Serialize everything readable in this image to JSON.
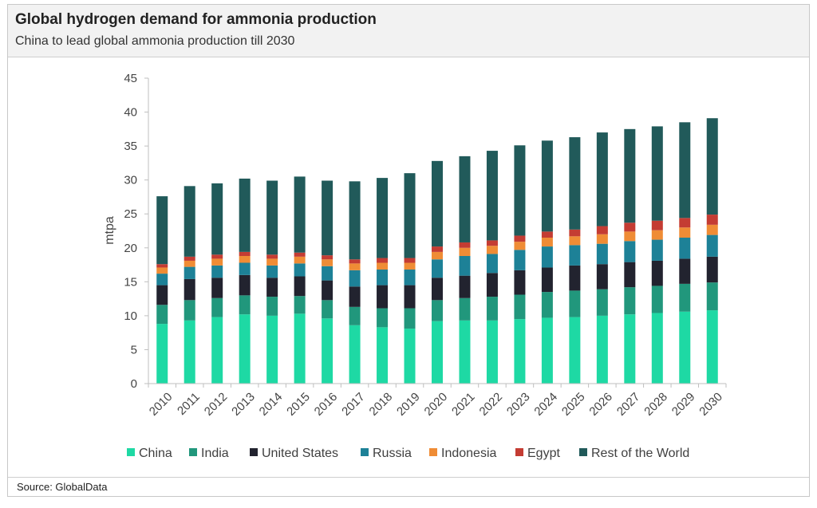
{
  "header": {
    "title": "Global hydrogen demand for ammonia production",
    "subtitle": "China to lead global ammonia production till 2030"
  },
  "footer": {
    "source": "Source: GlobalData"
  },
  "chart_data": {
    "type": "bar",
    "stacked": true,
    "title": "Global hydrogen demand for ammonia production",
    "subtitle": "China to lead global ammonia production till 2030",
    "xlabel": "",
    "ylabel": "mtpa",
    "ylim": [
      0,
      45
    ],
    "yticks": [
      0,
      5,
      10,
      15,
      20,
      25,
      30,
      35,
      40,
      45
    ],
    "grid": false,
    "legend_position": "bottom",
    "categories": [
      "2010",
      "2011",
      "2012",
      "2013",
      "2014",
      "2015",
      "2016",
      "2017",
      "2018",
      "2019",
      "2020",
      "2021",
      "2022",
      "2023",
      "2024",
      "2025",
      "2026",
      "2027",
      "2028",
      "2029",
      "2030"
    ],
    "series": [
      {
        "name": "China",
        "color": "#1ed9a4",
        "values": [
          8.8,
          9.3,
          9.8,
          10.2,
          10.0,
          10.3,
          9.6,
          8.6,
          8.3,
          8.1,
          9.2,
          9.3,
          9.3,
          9.5,
          9.7,
          9.8,
          10.0,
          10.2,
          10.4,
          10.6,
          10.8
        ]
      },
      {
        "name": "India",
        "color": "#21977c",
        "values": [
          2.8,
          3.0,
          2.8,
          2.8,
          2.8,
          2.6,
          2.7,
          2.7,
          2.8,
          3.0,
          3.1,
          3.3,
          3.5,
          3.6,
          3.8,
          3.9,
          3.9,
          4.0,
          4.0,
          4.1,
          4.1
        ]
      },
      {
        "name": "United States",
        "color": "#22232f",
        "values": [
          2.9,
          3.1,
          3.0,
          3.0,
          2.8,
          2.9,
          2.9,
          3.0,
          3.4,
          3.4,
          3.3,
          3.3,
          3.5,
          3.6,
          3.6,
          3.7,
          3.7,
          3.7,
          3.7,
          3.7,
          3.8
        ]
      },
      {
        "name": "Russia",
        "color": "#1d8197",
        "values": [
          1.7,
          1.8,
          1.8,
          1.8,
          1.8,
          1.9,
          2.1,
          2.4,
          2.3,
          2.3,
          2.7,
          2.9,
          2.8,
          3.0,
          3.1,
          3.0,
          3.0,
          3.1,
          3.1,
          3.1,
          3.2
        ]
      },
      {
        "name": "Indonesia",
        "color": "#ef8c35",
        "values": [
          0.9,
          0.9,
          1.0,
          1.0,
          1.0,
          1.0,
          1.0,
          1.0,
          1.0,
          1.0,
          1.1,
          1.2,
          1.2,
          1.2,
          1.3,
          1.3,
          1.4,
          1.4,
          1.4,
          1.5,
          1.5
        ]
      },
      {
        "name": "Egypt",
        "color": "#c43c33",
        "values": [
          0.5,
          0.6,
          0.6,
          0.6,
          0.6,
          0.6,
          0.6,
          0.6,
          0.7,
          0.7,
          0.8,
          0.8,
          0.8,
          0.9,
          0.9,
          1.0,
          1.2,
          1.3,
          1.4,
          1.4,
          1.5
        ]
      },
      {
        "name": "Rest of the World",
        "color": "#215a5a",
        "values": [
          10.0,
          10.4,
          10.5,
          10.8,
          10.9,
          11.2,
          11.0,
          11.5,
          11.8,
          12.5,
          12.6,
          12.7,
          13.2,
          13.3,
          13.4,
          13.6,
          13.8,
          13.8,
          13.9,
          14.1,
          14.2
        ]
      }
    ]
  }
}
